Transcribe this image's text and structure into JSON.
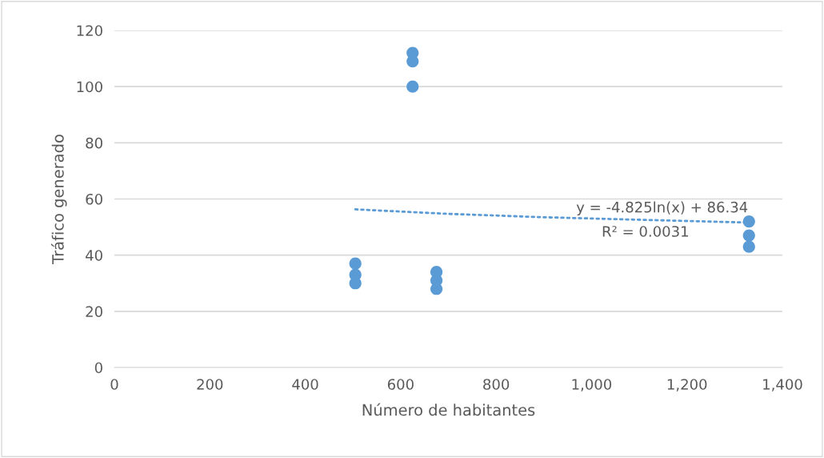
{
  "chart_data": {
    "type": "scatter",
    "xlabel": "Número de habitantes",
    "ylabel": "Tráfico generado",
    "xlim": [
      0,
      1400
    ],
    "xticks": [
      0,
      200,
      400,
      600,
      800,
      {
        "value": 1000,
        "label": "1,000"
      },
      {
        "value": 1200,
        "label": "1,200"
      },
      {
        "value": 1400,
        "label": "1,400"
      }
    ],
    "ylim": [
      0,
      120
    ],
    "yticks": [
      0,
      20,
      40,
      60,
      80,
      100,
      120
    ],
    "grid": "y",
    "legend": false,
    "marker": "circle",
    "series": [
      {
        "color": "#5b9bd5",
        "x": [
          505,
          505,
          505,
          625,
          625,
          625,
          675,
          675,
          675,
          1330,
          1330,
          1330
        ],
        "values": [
          37,
          33,
          30,
          112,
          109,
          100,
          34,
          31,
          28,
          52,
          47,
          43
        ]
      },
      {
        "type": "line",
        "color": "#5b9bd5",
        "line_style": "dotted",
        "marker": "none",
        "x": [
          505,
          700,
          900,
          1100,
          1330
        ],
        "values": [
          56.3,
          54.7,
          53.5,
          52.6,
          51.6
        ]
      }
    ],
    "annotations": [
      "y = -4.825ln(x) + 86.34",
      "R² = 0.0031"
    ]
  }
}
